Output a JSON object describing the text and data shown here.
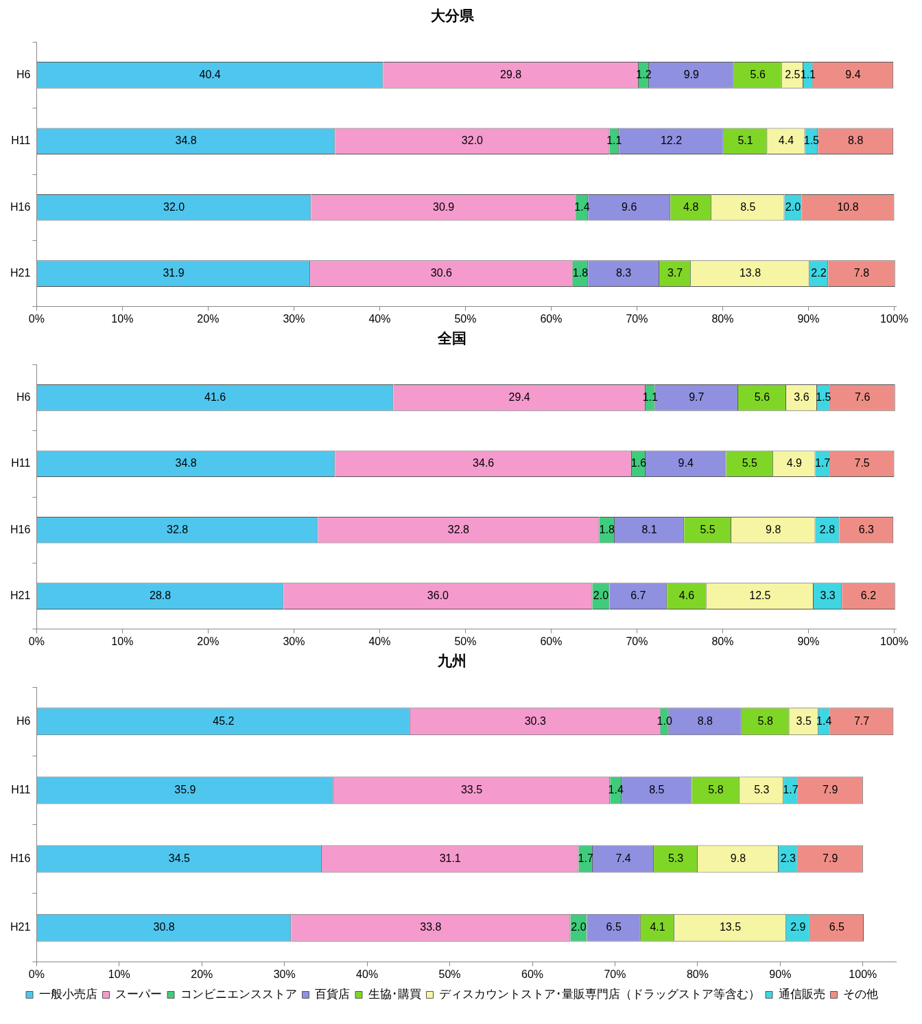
{
  "chart_data": [
    {
      "type": "bar",
      "orientation": "horizontal",
      "stacked": true,
      "title": "大分県",
      "categories": [
        "H6",
        "H11",
        "H16",
        "H21"
      ],
      "legend": false,
      "xlim": [
        0,
        100.2
      ],
      "xticks": [
        {
          "value": 0,
          "label": "0%"
        },
        {
          "value": 10,
          "label": "10%"
        },
        {
          "value": 20,
          "label": "20%"
        },
        {
          "value": 30,
          "label": "30%"
        },
        {
          "value": 40,
          "label": "40%"
        },
        {
          "value": 50,
          "label": "50%"
        },
        {
          "value": 60,
          "label": "60%"
        },
        {
          "value": 70,
          "label": "70%"
        },
        {
          "value": 80,
          "label": "80%"
        },
        {
          "value": 90,
          "label": "90%"
        },
        {
          "value": 100,
          "label": "100%"
        }
      ],
      "series": [
        {
          "color": "#4fc6ee",
          "values": [
            40.4,
            34.8,
            32.0,
            31.9
          ],
          "value_labels": [
            "40.4",
            "34.8",
            "32.0",
            "31.9"
          ]
        },
        {
          "color": "#f49acd",
          "values": [
            29.8,
            32.0,
            30.9,
            30.6
          ],
          "value_labels": [
            "29.8",
            "32.0",
            "30.9",
            "30.6"
          ]
        },
        {
          "color": "#3fcc7c",
          "values": [
            1.2,
            1.1,
            1.4,
            1.8
          ],
          "value_labels": [
            "1.2",
            "1.1",
            "1.4",
            "1.8"
          ]
        },
        {
          "color": "#9090e0",
          "values": [
            9.9,
            12.2,
            9.6,
            8.3
          ],
          "value_labels": [
            "9.9",
            "12.2",
            "9.6",
            "8.3"
          ]
        },
        {
          "color": "#80d626",
          "values": [
            5.6,
            5.1,
            4.8,
            3.7
          ],
          "value_labels": [
            "5.6",
            "5.1",
            "4.8",
            "3.7"
          ]
        },
        {
          "color": "#f6f5a4",
          "values": [
            2.5,
            4.4,
            8.5,
            13.8
          ],
          "value_labels": [
            "2.5",
            "4.4",
            "8.5",
            "13.8"
          ]
        },
        {
          "color": "#3ed6e2",
          "values": [
            1.1,
            1.5,
            2.0,
            2.2
          ],
          "value_labels": [
            "1.1",
            "1.5",
            "2.0",
            "2.2"
          ]
        },
        {
          "color": "#ee8d86",
          "values": [
            9.4,
            8.8,
            10.8,
            7.8
          ],
          "value_labels": [
            "9.4",
            "8.8",
            "10.8",
            "7.8"
          ]
        }
      ]
    },
    {
      "type": "bar",
      "orientation": "horizontal",
      "stacked": true,
      "title": "全国",
      "categories": [
        "H6",
        "H11",
        "H16",
        "H21"
      ],
      "legend": false,
      "xlim": [
        0,
        100.2
      ],
      "xticks": [
        {
          "value": 0,
          "label": "0%"
        },
        {
          "value": 10,
          "label": "10%"
        },
        {
          "value": 20,
          "label": "20%"
        },
        {
          "value": 30,
          "label": "30%"
        },
        {
          "value": 40,
          "label": "40%"
        },
        {
          "value": 50,
          "label": "50%"
        },
        {
          "value": 60,
          "label": "60%"
        },
        {
          "value": 70,
          "label": "70%"
        },
        {
          "value": 80,
          "label": "80%"
        },
        {
          "value": 90,
          "label": "90%"
        },
        {
          "value": 100,
          "label": "100%"
        }
      ],
      "series": [
        {
          "color": "#4fc6ee",
          "values": [
            41.6,
            34.8,
            32.8,
            28.8
          ],
          "value_labels": [
            "41.6",
            "34.8",
            "32.8",
            "28.8"
          ]
        },
        {
          "color": "#f49acd",
          "values": [
            29.4,
            34.6,
            32.8,
            36.0
          ],
          "value_labels": [
            "29.4",
            "34.6",
            "32.8",
            "36.0"
          ]
        },
        {
          "color": "#3fcc7c",
          "values": [
            1.1,
            1.6,
            1.8,
            2.0
          ],
          "value_labels": [
            "1.1",
            "1.6",
            "1.8",
            "2.0"
          ]
        },
        {
          "color": "#9090e0",
          "values": [
            9.7,
            9.4,
            8.1,
            6.7
          ],
          "value_labels": [
            "9.7",
            "9.4",
            "8.1",
            "6.7"
          ]
        },
        {
          "color": "#80d626",
          "values": [
            5.6,
            5.5,
            5.5,
            4.6
          ],
          "value_labels": [
            "5.6",
            "5.5",
            "5.5",
            "4.6"
          ]
        },
        {
          "color": "#f6f5a4",
          "values": [
            3.6,
            4.9,
            9.8,
            12.5
          ],
          "value_labels": [
            "3.6",
            "4.9",
            "9.8",
            "12.5"
          ]
        },
        {
          "color": "#3ed6e2",
          "values": [
            1.5,
            1.7,
            2.8,
            3.3
          ],
          "value_labels": [
            "1.5",
            "1.7",
            "2.8",
            "3.3"
          ]
        },
        {
          "color": "#ee8d86",
          "values": [
            7.6,
            7.5,
            6.3,
            6.2
          ],
          "value_labels": [
            "7.6",
            "7.5",
            "6.3",
            "6.2"
          ]
        }
      ]
    },
    {
      "type": "bar",
      "orientation": "horizontal",
      "stacked": true,
      "title": "九州",
      "categories": [
        "H6",
        "H11",
        "H16",
        "H21"
      ],
      "legend": "bottom",
      "xlim": [
        0,
        104
      ],
      "xticks": [
        {
          "value": 0,
          "label": "0%"
        },
        {
          "value": 10,
          "label": "10%"
        },
        {
          "value": 20,
          "label": "20%"
        },
        {
          "value": 30,
          "label": "30%"
        },
        {
          "value": 40,
          "label": "40%"
        },
        {
          "value": 50,
          "label": "50%"
        },
        {
          "value": 60,
          "label": "60%"
        },
        {
          "value": 70,
          "label": "70%"
        },
        {
          "value": 80,
          "label": "80%"
        },
        {
          "value": 90,
          "label": "90%"
        },
        {
          "value": 100,
          "label": "100%"
        }
      ],
      "series": [
        {
          "name": "一般小売店",
          "color": "#4fc6ee",
          "values": [
            45.2,
            35.9,
            34.5,
            30.8
          ],
          "value_labels": [
            "45.2",
            "35.9",
            "34.5",
            "30.8"
          ]
        },
        {
          "name": "スーパー",
          "color": "#f49acd",
          "values": [
            30.3,
            33.5,
            31.1,
            33.8
          ],
          "value_labels": [
            "30.3",
            "33.5",
            "31.1",
            "33.8"
          ]
        },
        {
          "name": "コンビニエンスストア",
          "color": "#3fcc7c",
          "values": [
            1.0,
            1.4,
            1.7,
            2.0
          ],
          "value_labels": [
            "1.0",
            "1.4",
            "1.7",
            "2.0"
          ]
        },
        {
          "name": "百貨店",
          "color": "#9090e0",
          "values": [
            8.8,
            8.5,
            7.4,
            6.5
          ],
          "value_labels": [
            "8.8",
            "8.5",
            "7.4",
            "6.5"
          ]
        },
        {
          "name": "生協･購買",
          "color": "#80d626",
          "values": [
            5.8,
            5.8,
            5.3,
            4.1
          ],
          "value_labels": [
            "5.8",
            "5.8",
            "5.3",
            "4.1"
          ]
        },
        {
          "name": "ディスカウントストア･量販専門店（ドラッグストア等含む）",
          "color": "#f6f5a4",
          "values": [
            3.5,
            5.3,
            9.8,
            13.5
          ],
          "value_labels": [
            "3.5",
            "5.3",
            "9.8",
            "13.5"
          ]
        },
        {
          "name": "通信販売",
          "color": "#3ed6e2",
          "values": [
            1.4,
            1.7,
            2.3,
            2.9
          ],
          "value_labels": [
            "1.4",
            "1.7",
            "2.3",
            "2.9"
          ]
        },
        {
          "name": "その他",
          "color": "#ee8d86",
          "values": [
            7.7,
            7.9,
            7.9,
            6.5
          ],
          "value_labels": [
            "7.7",
            "7.9",
            "7.9",
            "6.5"
          ]
        }
      ]
    }
  ]
}
